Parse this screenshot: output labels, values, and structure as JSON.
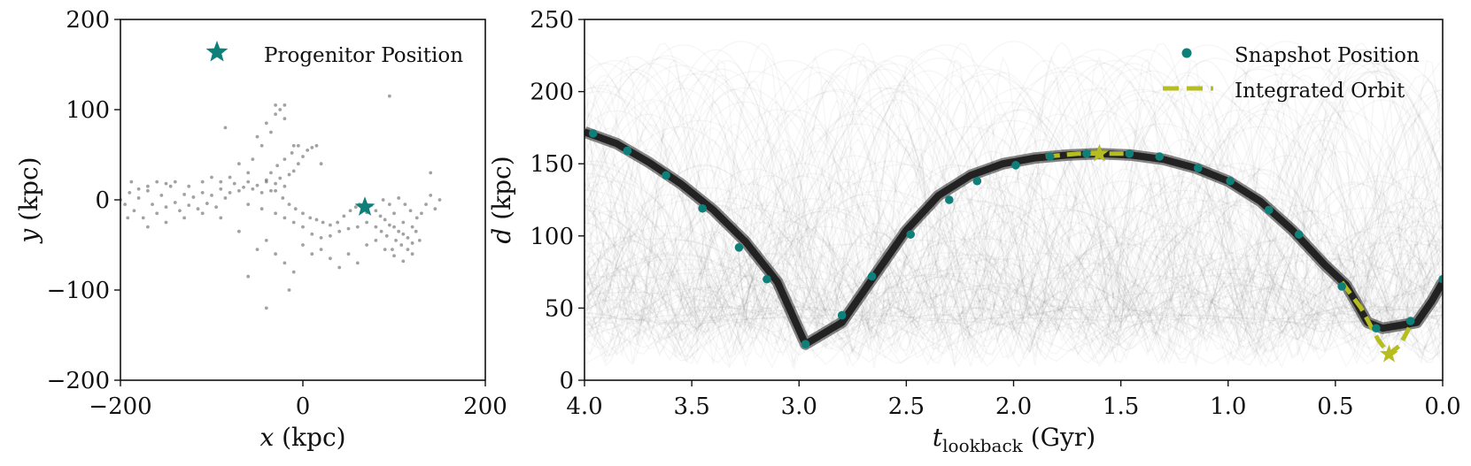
{
  "chart_data": [
    {
      "type": "scatter",
      "xlabel": "x (kpc)",
      "ylabel": "y (kpc)",
      "xlim": [
        -200,
        200
      ],
      "ylim": [
        -200,
        200
      ],
      "xticks": [
        "−200",
        "0",
        "200"
      ],
      "yticks": [
        "−200",
        "−100",
        "0",
        "100",
        "200"
      ],
      "legend": {
        "placement": "top-right",
        "entries": [
          {
            "label": "Progenitor Position",
            "marker": "star",
            "color": "#0f7f7a"
          }
        ]
      },
      "progenitor": {
        "x": 68,
        "y": -8
      },
      "particle_color": "#555555",
      "stream_points": [
        [
          -195,
          -5
        ],
        [
          -190,
          8
        ],
        [
          -185,
          -12
        ],
        [
          -180,
          2
        ],
        [
          -175,
          -20
        ],
        [
          -170,
          10
        ],
        [
          -165,
          -5
        ],
        [
          -160,
          -15
        ],
        [
          -155,
          5
        ],
        [
          -150,
          -8
        ],
        [
          -145,
          15
        ],
        [
          -140,
          -3
        ],
        [
          -135,
          -12
        ],
        [
          -130,
          6
        ],
        [
          -125,
          -6
        ],
        [
          -120,
          3
        ],
        [
          -115,
          -10
        ],
        [
          -110,
          8
        ],
        [
          -105,
          -4
        ],
        [
          -100,
          5
        ],
        [
          -95,
          -8
        ],
        [
          -90,
          12
        ],
        [
          -85,
          2
        ],
        [
          -80,
          8
        ],
        [
          -75,
          18
        ],
        [
          -70,
          10
        ],
        [
          -65,
          14
        ],
        [
          -60,
          20
        ],
        [
          -55,
          12
        ],
        [
          -50,
          16
        ],
        [
          -45,
          8
        ],
        [
          -40,
          22
        ],
        [
          -35,
          10
        ],
        [
          -30,
          18
        ],
        [
          -25,
          24
        ],
        [
          -20,
          15
        ],
        [
          -15,
          28
        ],
        [
          -10,
          32
        ],
        [
          -5,
          40
        ],
        [
          0,
          48
        ],
        [
          5,
          55
        ],
        [
          10,
          58
        ],
        [
          -5,
          60
        ],
        [
          -12,
          52
        ],
        [
          -20,
          45
        ],
        [
          -28,
          38
        ],
        [
          -35,
          30
        ],
        [
          -40,
          20
        ],
        [
          -30,
          10
        ],
        [
          -22,
          2
        ],
        [
          -15,
          -5
        ],
        [
          -8,
          -10
        ],
        [
          0,
          -15
        ],
        [
          8,
          -20
        ],
        [
          15,
          -22
        ],
        [
          22,
          -25
        ],
        [
          30,
          -28
        ],
        [
          38,
          -25
        ],
        [
          45,
          -18
        ],
        [
          52,
          -12
        ],
        [
          58,
          -8
        ],
        [
          62,
          -5
        ],
        [
          66,
          -10
        ],
        [
          70,
          -14
        ],
        [
          75,
          -6
        ],
        [
          80,
          -12
        ],
        [
          85,
          -18
        ],
        [
          90,
          -22
        ],
        [
          95,
          -28
        ],
        [
          100,
          -30
        ],
        [
          105,
          -35
        ],
        [
          110,
          -38
        ],
        [
          115,
          -42
        ],
        [
          120,
          -30
        ],
        [
          125,
          -20
        ],
        [
          130,
          -15
        ],
        [
          135,
          -5
        ],
        [
          140,
          5
        ],
        [
          145,
          -10
        ],
        [
          110,
          -25
        ],
        [
          102,
          -45
        ],
        [
          98,
          -55
        ],
        [
          108,
          -50
        ],
        [
          115,
          -55
        ],
        [
          120,
          -48
        ],
        [
          92,
          -40
        ],
        [
          86,
          -35
        ],
        [
          100,
          -15
        ],
        [
          105,
          2
        ],
        [
          95,
          -5
        ],
        [
          88,
          0
        ],
        [
          112,
          -5
        ],
        [
          118,
          -12
        ],
        [
          124,
          -35
        ],
        [
          128,
          -45
        ],
        [
          80,
          -30
        ],
        [
          70,
          -25
        ],
        [
          60,
          -30
        ],
        [
          50,
          -32
        ],
        [
          40,
          -35
        ],
        [
          30,
          -40
        ],
        [
          20,
          -42
        ],
        [
          10,
          -38
        ],
        [
          0,
          -30
        ],
        [
          -10,
          -25
        ],
        [
          -20,
          -20
        ],
        [
          -30,
          -15
        ],
        [
          -45,
          -10
        ],
        [
          -60,
          -5
        ],
        [
          -50,
          70
        ],
        [
          -40,
          85
        ],
        [
          -30,
          95
        ],
        [
          -25,
          100
        ],
        [
          -20,
          90
        ],
        [
          -35,
          75
        ],
        [
          -45,
          60
        ],
        [
          -55,
          45
        ],
        [
          -60,
          30
        ],
        [
          -70,
          40
        ],
        [
          -80,
          25
        ],
        [
          -90,
          20
        ],
        [
          -100,
          25
        ],
        [
          -110,
          20
        ],
        [
          -125,
          15
        ],
        [
          -140,
          20
        ],
        [
          -150,
          18
        ],
        [
          -160,
          20
        ],
        [
          -170,
          15
        ],
        [
          -180,
          12
        ],
        [
          -188,
          20
        ],
        [
          -192,
          -20
        ],
        [
          -170,
          -30
        ],
        [
          -150,
          -25
        ],
        [
          -130,
          -20
        ],
        [
          -110,
          -15
        ],
        [
          -90,
          -20
        ],
        [
          -70,
          -35
        ],
        [
          -50,
          -55
        ],
        [
          -40,
          -45
        ],
        [
          -30,
          -60
        ],
        [
          -20,
          -70
        ],
        [
          -10,
          -80
        ],
        [
          0,
          -50
        ],
        [
          10,
          -60
        ],
        [
          20,
          -55
        ],
        [
          30,
          -65
        ],
        [
          40,
          -75
        ],
        [
          50,
          -60
        ],
        [
          60,
          -70
        ],
        [
          70,
          -50
        ],
        [
          80,
          -45
        ],
        [
          90,
          -55
        ],
        [
          100,
          -62
        ],
        [
          110,
          -68
        ],
        [
          120,
          -60
        ],
        [
          95,
          115
        ],
        [
          -85,
          80
        ],
        [
          -60,
          -85
        ],
        [
          -40,
          -120
        ],
        [
          -15,
          -100
        ],
        [
          140,
          30
        ],
        [
          150,
          0
        ],
        [
          -200,
          0
        ],
        [
          -30,
          105
        ],
        [
          -20,
          105
        ],
        [
          -10,
          60
        ],
        [
          15,
          60
        ],
        [
          20,
          40
        ]
      ]
    },
    {
      "type": "line",
      "xlabel": "t_lookback (Gyr)",
      "xlabel_main": "t",
      "xlabel_sub": "lookback",
      "xlabel_unit": " (Gyr)",
      "ylabel": "d (kpc)",
      "xlim": [
        4.0,
        0.0
      ],
      "ylim": [
        0,
        250
      ],
      "xticks": [
        "4.0",
        "3.5",
        "3.0",
        "2.5",
        "2.0",
        "1.5",
        "1.0",
        "0.5",
        "0.0"
      ],
      "yticks": [
        "0",
        "50",
        "100",
        "150",
        "200",
        "250"
      ],
      "legend": {
        "placement": "top-right",
        "entries": [
          {
            "label": "Snapshot Position",
            "marker": "circle",
            "color": "#0f7f7a"
          },
          {
            "label": "Integrated Orbit",
            "line": "dashed",
            "color": "#b5bd1f"
          }
        ]
      },
      "colors": {
        "snapshot": "#0f7f7a",
        "orbit": "#b5bd1f",
        "main_band": "#222222",
        "ensemble": "#000000"
      },
      "main_track": {
        "t": [
          4.0,
          3.85,
          3.7,
          3.55,
          3.4,
          3.25,
          3.1,
          2.97,
          2.8,
          2.65,
          2.5,
          2.35,
          2.2,
          2.05,
          1.9,
          1.75,
          1.6,
          1.45,
          1.3,
          1.15,
          1.0,
          0.85,
          0.7,
          0.55,
          0.45,
          0.35,
          0.28,
          0.2,
          0.12,
          0.05,
          0.0
        ],
        "d": [
          172,
          164,
          151,
          136,
          118,
          96,
          68,
          25,
          40,
          72,
          104,
          128,
          142,
          150,
          154,
          156,
          157,
          156,
          153,
          147,
          138,
          124,
          104,
          80,
          66,
          40,
          36,
          38,
          40,
          55,
          68
        ]
      },
      "snapshots": {
        "t": [
          3.96,
          3.8,
          3.62,
          3.45,
          3.28,
          3.15,
          2.97,
          2.8,
          2.66,
          2.48,
          2.3,
          2.17,
          1.99,
          1.83,
          1.66,
          1.46,
          1.32,
          1.14,
          0.99,
          0.81,
          0.67,
          0.47,
          0.31,
          0.15,
          0.0
        ],
        "d": [
          171,
          159,
          142,
          119,
          92,
          70,
          25,
          45,
          72,
          101,
          125,
          138,
          149,
          155,
          157,
          157,
          155,
          147,
          138,
          118,
          101,
          65,
          36,
          41,
          70
        ]
      },
      "integrated_orbit": [
        {
          "t": [
            1.85,
            1.7,
            1.6,
            1.45
          ],
          "d": [
            155,
            157,
            157,
            157
          ]
        },
        {
          "t": [
            0.47,
            0.38,
            0.3,
            0.25,
            0.2,
            0.15
          ],
          "d": [
            68,
            50,
            28,
            18,
            24,
            38
          ]
        }
      ],
      "orbit_stars": [
        {
          "t": 1.6,
          "d": 157
        },
        {
          "t": 0.25,
          "d": 18
        }
      ]
    }
  ]
}
